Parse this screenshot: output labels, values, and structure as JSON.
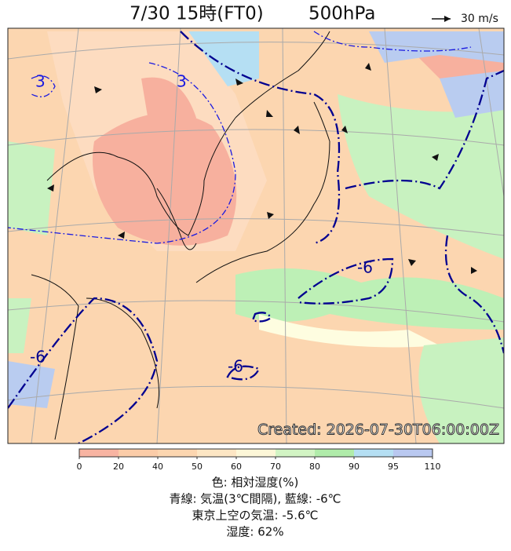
{
  "header": {
    "title": "7/30 15時(FT0)",
    "level": "500hPa",
    "wind_scale": "30 m/s"
  },
  "map": {
    "created": "Created: 2026-07-30T06:00:00Z",
    "contour_labels": [
      "3",
      "3",
      "-6",
      "-6",
      "-6"
    ]
  },
  "colorbar": {
    "ticks": [
      0,
      20,
      40,
      50,
      60,
      70,
      80,
      90,
      95,
      110
    ],
    "colors": [
      "#f8b4a2",
      "#fbcca8",
      "#fcd6b0",
      "#fde6c4",
      "#fdf7d8",
      "#d2f4c4",
      "#b0ecaa",
      "#b5dff3",
      "#b9c8f0"
    ]
  },
  "legend": {
    "color_label": "色: 相対湿度(%)",
    "lines": "青線: 気温(3℃間隔), 藍線: -6℃",
    "tokyo_temp": "東京上空の気温: -5.6℃",
    "humidity": "湿度: 62%"
  }
}
